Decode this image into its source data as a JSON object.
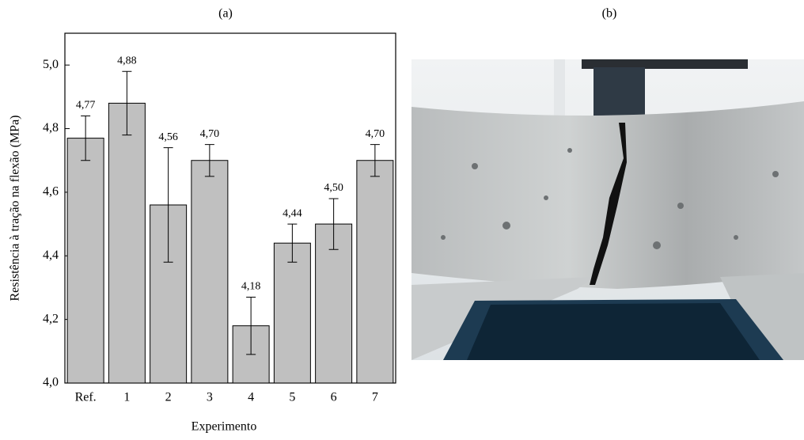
{
  "chart_data": {
    "type": "bar",
    "title": "(a)",
    "xlabel": "Experimento",
    "ylabel": "Resistência à tração na flexão (MPa)",
    "categories": [
      "Ref.",
      "1",
      "2",
      "3",
      "4",
      "5",
      "6",
      "7"
    ],
    "values": [
      4.77,
      4.88,
      4.56,
      4.7,
      4.18,
      4.44,
      4.5,
      4.7
    ],
    "value_labels": [
      "4,77",
      "4,88",
      "4,56",
      "4,70",
      "4,18",
      "4,44",
      "4,50",
      "4,70"
    ],
    "errors": [
      0.07,
      0.1,
      0.18,
      0.05,
      0.09,
      0.06,
      0.08,
      0.05
    ],
    "color": "#c0c0c0",
    "ylim": [
      4.0,
      5.1
    ],
    "yticks": [
      {
        "value": 4.0,
        "label": "4,0"
      },
      {
        "value": 4.2,
        "label": "4,2"
      },
      {
        "value": 4.4,
        "label": "4,4"
      },
      {
        "value": 4.6,
        "label": "4,6"
      },
      {
        "value": 4.8,
        "label": "4,8"
      },
      {
        "value": 5.0,
        "label": "5,0"
      }
    ]
  },
  "photo_label": "(b)"
}
